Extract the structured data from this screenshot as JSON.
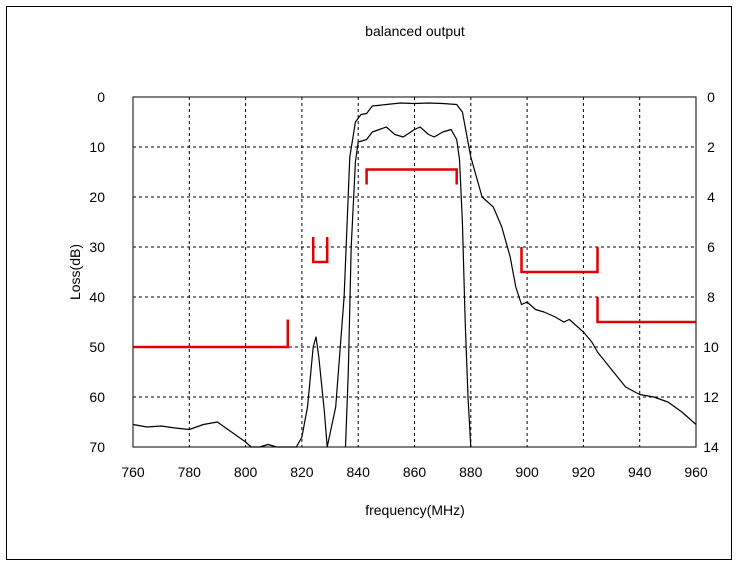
{
  "chart_data": {
    "type": "line",
    "title": "balanced output",
    "xlabel": "frequency(MHz)",
    "ylabel": "Loss(dB)",
    "xlim": [
      760,
      960
    ],
    "ylim": [
      0,
      70
    ],
    "y2lim": [
      0,
      14
    ],
    "y_inverted": true,
    "grid": true,
    "x_ticks": [
      "760",
      "780",
      "800",
      "820",
      "840",
      "860",
      "880",
      "900",
      "920",
      "940",
      "960"
    ],
    "y_ticks": [
      "0",
      "10",
      "20",
      "30",
      "40",
      "50",
      "60",
      "70"
    ],
    "y2_ticks": [
      "0",
      "2",
      "4",
      "6",
      "8",
      "10",
      "12",
      "14"
    ],
    "series": [
      {
        "axis": "left",
        "color": "#000000",
        "points": [
          [
            760,
            65.5
          ],
          [
            765,
            66
          ],
          [
            770,
            65.8
          ],
          [
            775,
            66.2
          ],
          [
            780,
            66.5
          ],
          [
            785,
            65.5
          ],
          [
            790,
            65
          ],
          [
            795,
            67
          ],
          [
            800,
            69
          ],
          [
            802,
            70
          ],
          [
            805,
            70
          ],
          [
            808,
            69.5
          ],
          [
            811,
            70
          ],
          [
            818,
            70
          ],
          [
            820,
            68
          ],
          [
            822,
            62
          ],
          [
            824,
            50
          ],
          [
            825,
            48
          ],
          [
            826,
            52
          ],
          [
            828,
            63
          ],
          [
            829,
            70
          ],
          [
            832,
            62
          ],
          [
            835,
            40
          ],
          [
            837,
            12
          ],
          [
            839,
            5
          ],
          [
            841,
            3.5
          ],
          [
            843,
            3.3
          ],
          [
            845,
            1.8
          ],
          [
            850,
            1.5
          ],
          [
            855,
            1.2
          ],
          [
            860,
            1.3
          ],
          [
            865,
            1.2
          ],
          [
            870,
            1.3
          ],
          [
            875,
            1.5
          ],
          [
            877,
            3
          ],
          [
            880,
            12
          ],
          [
            884,
            20
          ],
          [
            888,
            22
          ],
          [
            891,
            26
          ],
          [
            894,
            32
          ],
          [
            896,
            38
          ],
          [
            898,
            41.5
          ],
          [
            900,
            41
          ],
          [
            903,
            42.5
          ],
          [
            906,
            43
          ],
          [
            910,
            44
          ],
          [
            913,
            45
          ],
          [
            915,
            44.5
          ],
          [
            918,
            46
          ],
          [
            920,
            47
          ],
          [
            923,
            49
          ],
          [
            925,
            51
          ],
          [
            930,
            54.5
          ],
          [
            935,
            58
          ],
          [
            940,
            59.5
          ],
          [
            945,
            60
          ],
          [
            950,
            61
          ],
          [
            955,
            63
          ],
          [
            960,
            65.5
          ]
        ]
      },
      {
        "axis": "right",
        "color": "#000000",
        "points": [
          [
            835.5,
            14
          ],
          [
            836.5,
            11
          ],
          [
            837.5,
            6
          ],
          [
            839,
            2.6
          ],
          [
            840,
            1.8
          ],
          [
            843,
            1.7
          ],
          [
            845,
            1.4
          ],
          [
            850,
            1.2
          ],
          [
            853,
            1.5
          ],
          [
            856,
            1.6
          ],
          [
            860,
            1.3
          ],
          [
            862,
            1.2
          ],
          [
            865,
            1.5
          ],
          [
            867,
            1.6
          ],
          [
            870,
            1.4
          ],
          [
            873,
            1.3
          ],
          [
            875,
            1.7
          ],
          [
            876,
            2.5
          ],
          [
            877,
            5
          ],
          [
            878,
            9
          ],
          [
            879,
            12
          ],
          [
            880,
            14
          ]
        ]
      }
    ],
    "spec_masks": [
      {
        "color": "#e00000",
        "points": [
          [
            760,
            50
          ],
          [
            815,
            50
          ],
          [
            815,
            44.5
          ]
        ]
      },
      {
        "color": "#e00000",
        "points": [
          [
            824,
            28
          ],
          [
            824,
            33
          ],
          [
            829,
            33
          ],
          [
            829,
            28
          ]
        ]
      },
      {
        "color": "#e00000",
        "points": [
          [
            843,
            17.5
          ],
          [
            843,
            14.5
          ],
          [
            875,
            14.5
          ],
          [
            875,
            17.5
          ]
        ]
      },
      {
        "color": "#e00000",
        "points": [
          [
            898,
            30
          ],
          [
            898,
            35
          ],
          [
            925,
            35
          ],
          [
            925,
            30
          ]
        ]
      },
      {
        "color": "#e00000",
        "points": [
          [
            925,
            40
          ],
          [
            925,
            45
          ],
          [
            960,
            45
          ]
        ]
      }
    ]
  }
}
